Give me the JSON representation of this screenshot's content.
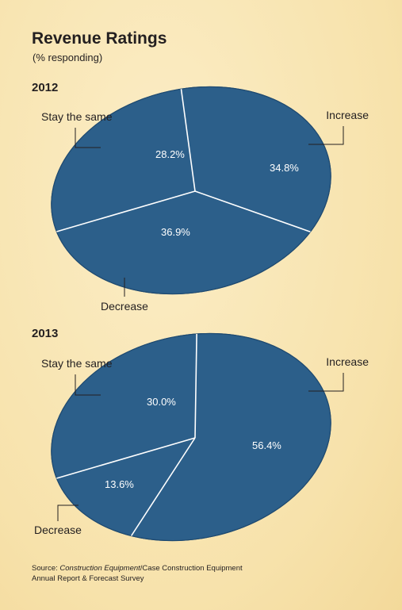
{
  "title": "Revenue Ratings",
  "subtitle": "(% responding)",
  "source": {
    "prefix": "Source: ",
    "italic": "Construction Equipment",
    "rest": "/Case Construction Equipment",
    "line2": "Annual Report & Forecast Survey"
  },
  "colors": {
    "slice": "#2c5f8a",
    "slice_edge": "#1f4a70",
    "divider": "#ffffff",
    "background": "#f8e6b4"
  },
  "chart_data": [
    {
      "type": "pie",
      "title": "2012",
      "slices": [
        {
          "label": "Stay the same",
          "value": 28.2,
          "value_label": "28.2%"
        },
        {
          "label": "Increase",
          "value": 34.8,
          "value_label": "34.8%"
        },
        {
          "label": "Decrease",
          "value": 36.9,
          "value_label": "36.9%"
        }
      ]
    },
    {
      "type": "pie",
      "title": "2013",
      "slices": [
        {
          "label": "Stay the same",
          "value": 30.0,
          "value_label": "30.0%"
        },
        {
          "label": "Increase",
          "value": 56.4,
          "value_label": "56.4%"
        },
        {
          "label": "Decrease",
          "value": 13.6,
          "value_label": "13.6%"
        }
      ]
    }
  ]
}
